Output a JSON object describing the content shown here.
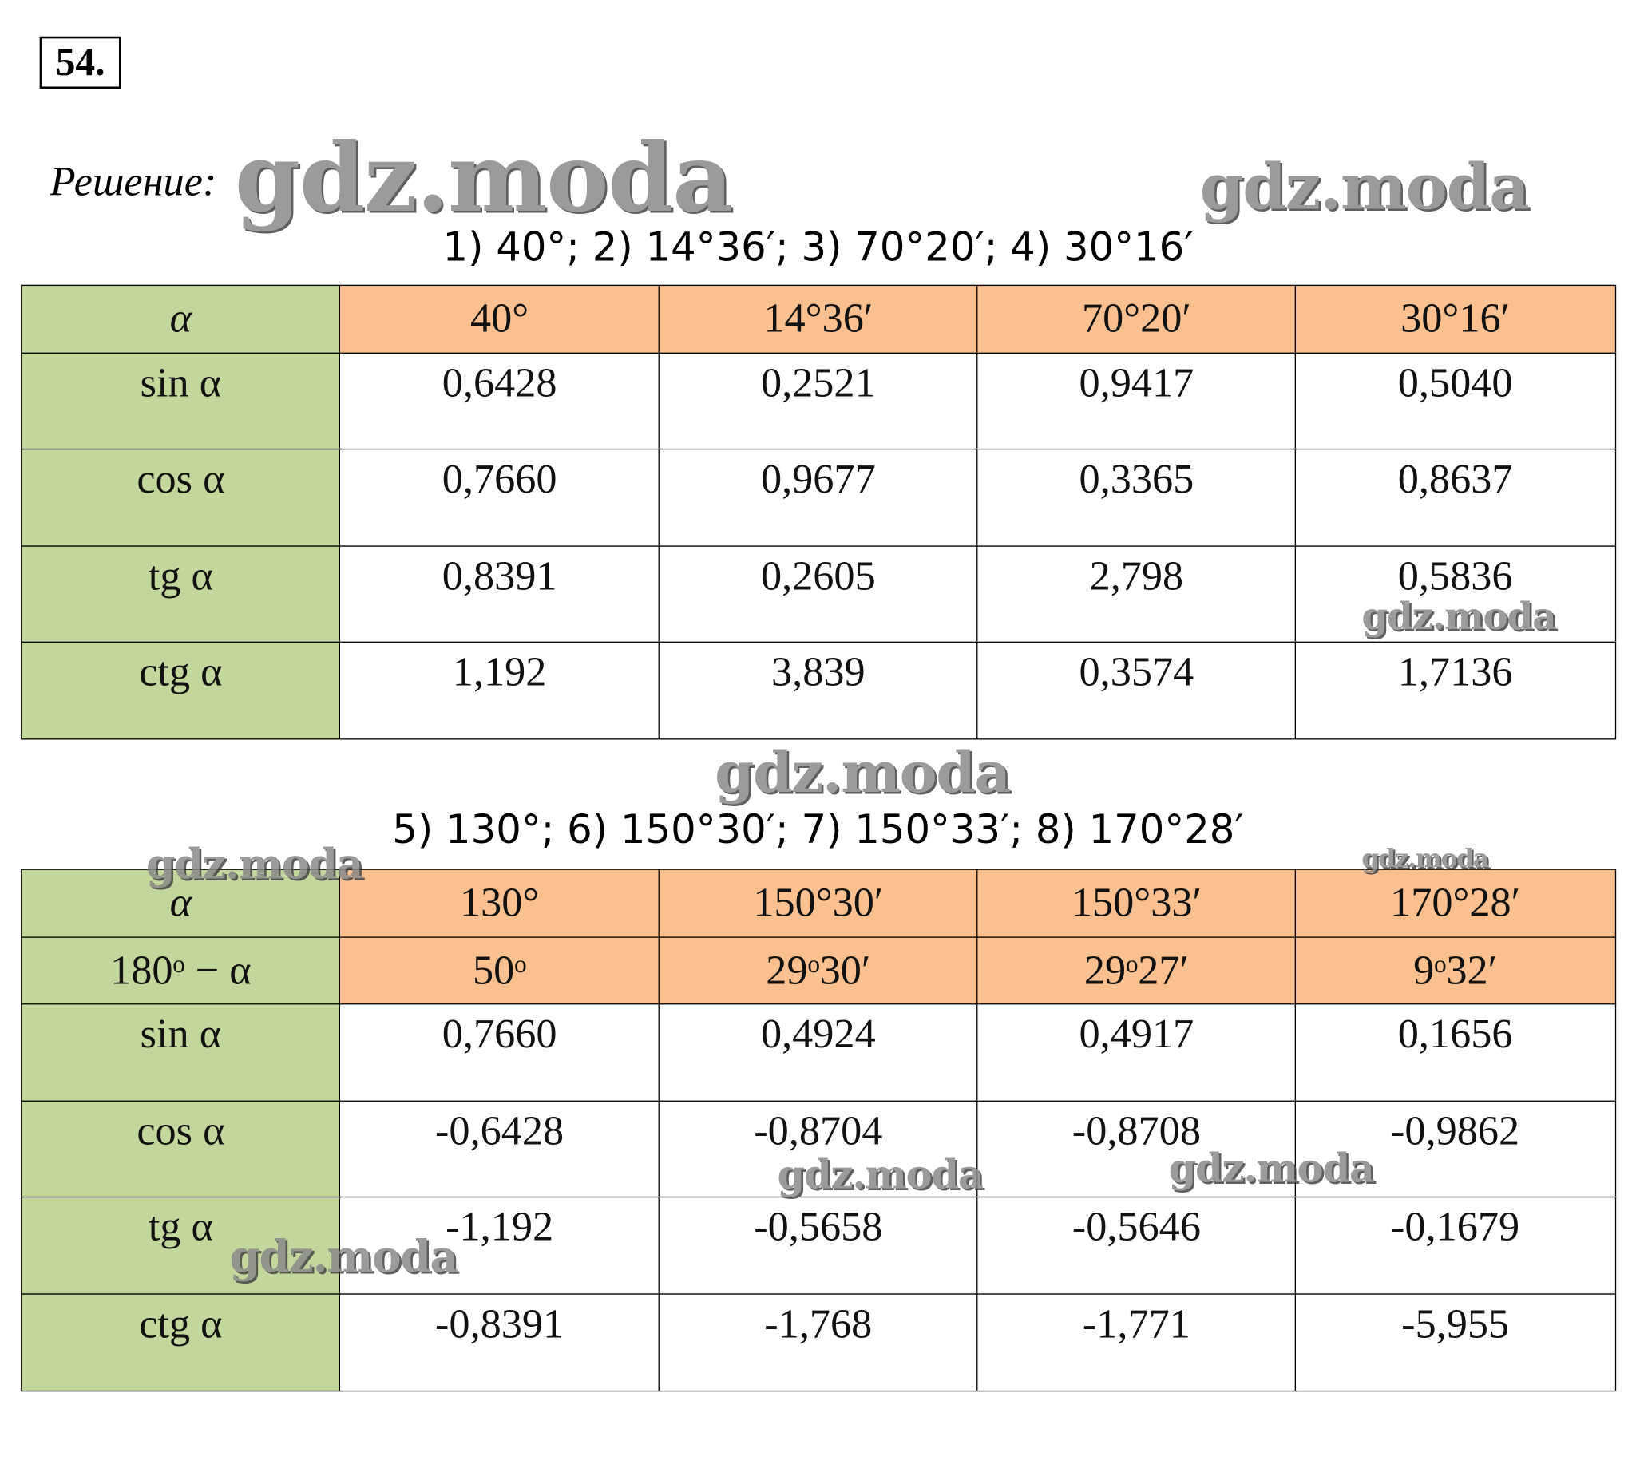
{
  "problem_number": "54.",
  "solution_label": "Решение:",
  "tables": [
    {
      "caption": "1) 40°; 2) 14°36′; 3) 70°20′; 4) 30°16′",
      "header_rows": [
        [
          "α",
          "40°",
          "14°36′",
          "70°20′",
          "30°16′"
        ]
      ],
      "rows": [
        [
          "sin α",
          "0,6428",
          "0,2521",
          "0,9417",
          "0,5040"
        ],
        [
          "cos α",
          "0,7660",
          "0,9677",
          "0,3365",
          "0,8637"
        ],
        [
          "tg α",
          "0,8391",
          "0,2605",
          "2,798",
          "0,5836"
        ],
        [
          "ctg α",
          "1,192",
          "3,839",
          "0,3574",
          "1,7136"
        ]
      ]
    },
    {
      "caption": "5) 130°; 6) 150°30′; 7) 150°33′; 8) 170°28′",
      "header_rows": [
        [
          "α",
          "130°",
          "150°30′",
          "150°33′",
          "170°28′"
        ],
        [
          "180ᵒ − α",
          "50ᵒ",
          "29ᵒ30′",
          "29ᵒ27′",
          "9ᵒ32′"
        ]
      ],
      "rows": [
        [
          "sin α",
          "0,7660",
          "0,4924",
          "0,4917",
          "0,1656"
        ],
        [
          "cos α",
          "-0,6428",
          "-0,8704",
          "-0,8708",
          "-0,9862"
        ],
        [
          "tg α",
          "-1,192",
          "-0,5658",
          "-0,5646",
          "-0,1679"
        ],
        [
          "ctg α",
          "-0,8391",
          "-1,768",
          "-1,771",
          "-5,955"
        ]
      ]
    }
  ],
  "watermarks": [
    "gdz.moda",
    "gdz.moda",
    "gdz.moda",
    "gdz.moda",
    "gdz.moda",
    "gdz.moda",
    "gdz.moda",
    "gdz.moda",
    "gdz.moda"
  ]
}
